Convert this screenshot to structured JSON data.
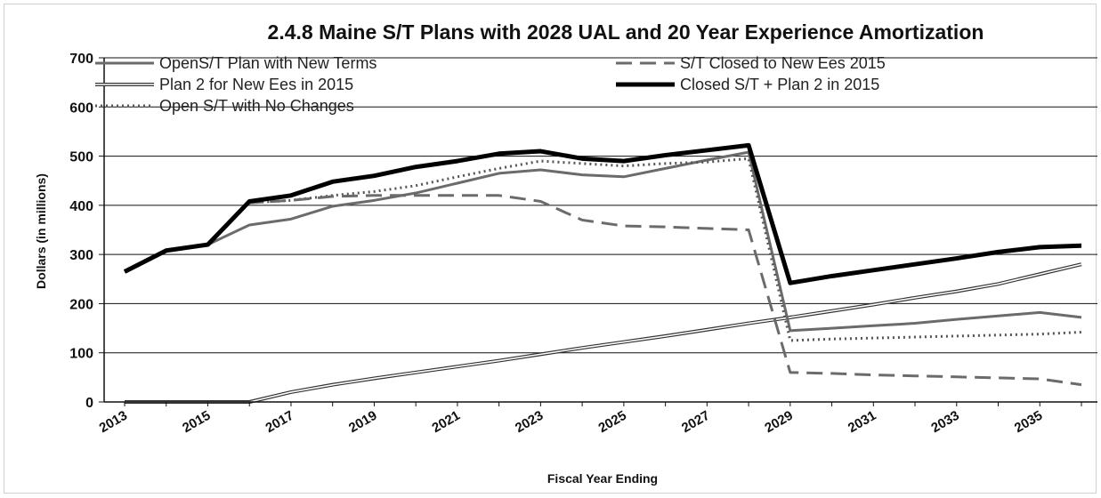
{
  "chart_data": {
    "type": "line",
    "title": "2.4.8 Maine S/T Plans with 2028 UAL and 20 Year Experience Amortization",
    "xlabel": "Fiscal Year Ending",
    "ylabel": "Dollars (in millions)",
    "ylim": [
      0,
      700
    ],
    "xlim": [
      2013,
      2036
    ],
    "yticks": [
      "0",
      "100",
      "200",
      "300",
      "400",
      "500",
      "600",
      "700"
    ],
    "xticks": [
      "2013",
      "2015",
      "2017",
      "2019",
      "2021",
      "2023",
      "2025",
      "2027",
      "2029",
      "2031",
      "2033",
      "2035"
    ],
    "grid": "horizontal",
    "legend_position": "top",
    "x": [
      2013,
      2014,
      2015,
      2016,
      2017,
      2018,
      2019,
      2020,
      2021,
      2022,
      2023,
      2024,
      2025,
      2026,
      2027,
      2028,
      2029,
      2030,
      2031,
      2032,
      2033,
      2034,
      2035,
      2036
    ],
    "series": [
      {
        "name": "OpenS/T Plan with New Terms",
        "style": "solid-gray",
        "color": "#6b6b6b",
        "values": [
          265,
          308,
          320,
          360,
          372,
          398,
          410,
          425,
          445,
          465,
          472,
          462,
          458,
          475,
          492,
          508,
          145,
          150,
          155,
          160,
          168,
          175,
          182,
          172
        ]
      },
      {
        "name": "S/T Closed to New  Ees 2015",
        "style": "dashed-gray",
        "color": "#6b6b6b",
        "values": [
          265,
          308,
          320,
          405,
          410,
          418,
          420,
          420,
          420,
          420,
          408,
          370,
          358,
          356,
          353,
          350,
          60,
          58,
          55,
          53,
          51,
          49,
          47,
          35
        ]
      },
      {
        "name": "Plan 2 for New Ees in 2015",
        "style": "double-line",
        "color": "#333333",
        "values": [
          0,
          0,
          0,
          0,
          20,
          35,
          48,
          60,
          72,
          84,
          97,
          110,
          122,
          134,
          147,
          160,
          172,
          185,
          198,
          212,
          225,
          240,
          260,
          280
        ]
      },
      {
        "name": "Closed S/T + Plan 2 in 2015",
        "style": "thick-black",
        "color": "#000000",
        "values": [
          265,
          308,
          320,
          408,
          420,
          448,
          460,
          478,
          490,
          505,
          510,
          495,
          490,
          502,
          512,
          522,
          242,
          256,
          268,
          280,
          292,
          305,
          315,
          318
        ]
      },
      {
        "name": "Open S/T with No Changes",
        "style": "dotted-gray",
        "color": "#555555",
        "values": [
          265,
          308,
          320,
          405,
          410,
          420,
          428,
          440,
          458,
          475,
          490,
          485,
          480,
          485,
          488,
          495,
          125,
          128,
          130,
          132,
          134,
          136,
          138,
          142
        ]
      }
    ]
  }
}
